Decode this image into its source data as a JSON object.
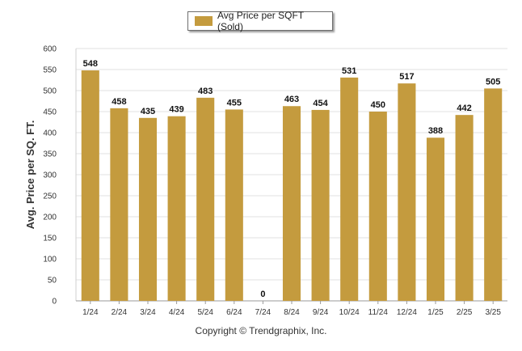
{
  "chart_data": {
    "type": "bar",
    "categories": [
      "1/24",
      "2/24",
      "3/24",
      "4/24",
      "5/24",
      "6/24",
      "7/24",
      "8/24",
      "9/24",
      "10/24",
      "11/24",
      "12/24",
      "1/25",
      "2/25",
      "3/25"
    ],
    "series": [
      {
        "name": "Avg Price per SQFT (Sold)",
        "values": [
          548,
          458,
          435,
          439,
          483,
          455,
          0,
          463,
          454,
          531,
          450,
          517,
          388,
          442,
          505
        ]
      }
    ],
    "ylabel": "Avg. Price per SQ. FT.",
    "xlabel": "",
    "ylim": [
      0,
      600
    ],
    "yticks": [
      0,
      50,
      100,
      150,
      200,
      250,
      300,
      350,
      400,
      450,
      500,
      550,
      600
    ],
    "grid": true,
    "legend_position": "top-center",
    "bar_color": "#C49B3E",
    "data_labels": true
  },
  "footer": {
    "copyright": "Copyright © Trendgraphix, Inc."
  }
}
